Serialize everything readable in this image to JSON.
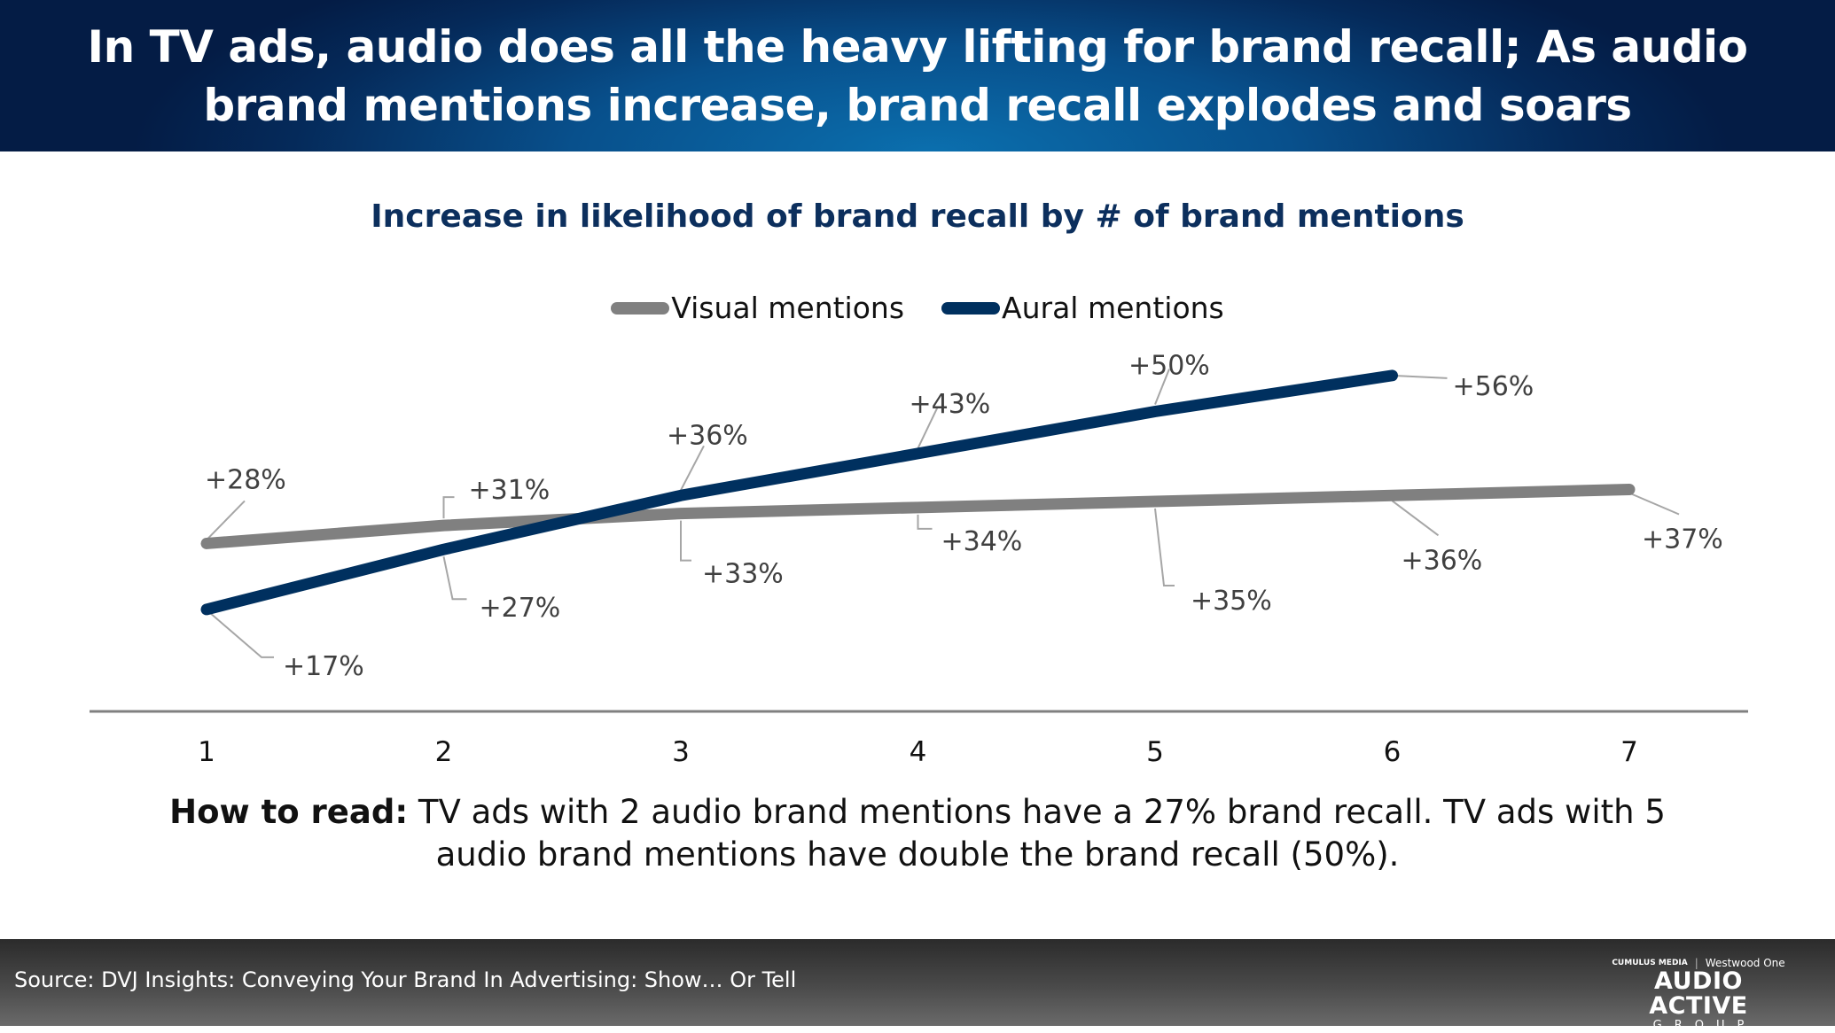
{
  "header": {
    "title_line1": "In TV ads, audio does all the heavy lifting for brand recall; As audio",
    "title_line2": "brand mentions increase, brand recall explodes and soars"
  },
  "how_to_read": {
    "label": "How to read:",
    "text_line1": " TV ads with 2 audio brand mentions have a 27% brand recall. TV ads with 5",
    "text_line2": "audio brand mentions have double the brand recall (50%)."
  },
  "footer": {
    "source": "Source: DVJ Insights: Conveying Your Brand In Advertising: Show… Or Tell",
    "logo": {
      "partner1": "CUMULUS MEDIA",
      "partner2": "Westwood One",
      "main": "AUDIO ACTIVE",
      "sub": "GROUP"
    }
  },
  "colors": {
    "visual": "#808080",
    "aural": "#00305f",
    "title": "#0c2f5d",
    "header_bg": "#08508c"
  },
  "chart_data": {
    "type": "line",
    "title": "Increase in likelihood of brand recall by # of brand mentions",
    "xlabel": "",
    "ylabel": "",
    "x": [
      1,
      2,
      3,
      4,
      5,
      6,
      7
    ],
    "categories": [
      "1",
      "2",
      "3",
      "4",
      "5",
      "6",
      "7"
    ],
    "series": [
      {
        "name": "Visual mentions",
        "color": "#808080",
        "values": [
          28,
          31,
          33,
          34,
          35,
          36,
          37
        ],
        "labels": [
          "+28%",
          "+31%",
          "+33%",
          "+34%",
          "+35%",
          "+36%",
          "+37%"
        ]
      },
      {
        "name": "Aural mentions",
        "color": "#00305f",
        "values": [
          17,
          27,
          36,
          43,
          50,
          56,
          null
        ],
        "labels": [
          "+17%",
          "+27%",
          "+36%",
          "+43%",
          "+50%",
          "+56%"
        ]
      }
    ],
    "ylim": [
      0,
      60
    ],
    "grid": false,
    "legend_position": "top"
  }
}
